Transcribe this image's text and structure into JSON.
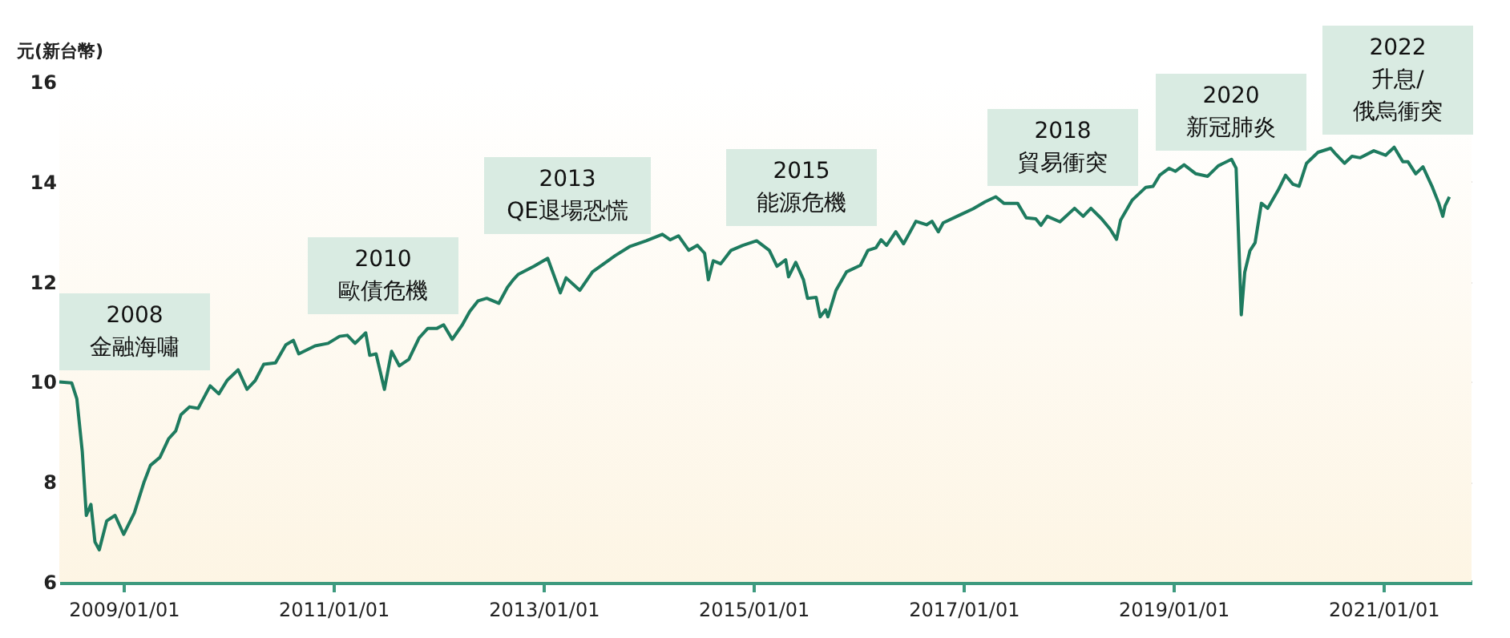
{
  "chart_data": {
    "type": "line",
    "ylabel": "元(新台幣)",
    "x": [
      "2008-05-22",
      "2008-07-04",
      "2008-07-22",
      "2008-08-10",
      "2008-08-24",
      "2008-09-09",
      "2008-09-23",
      "2008-10-08",
      "2008-11-03",
      "2008-12-02",
      "2009-01-01",
      "2009-02-07",
      "2009-03-13",
      "2009-04-04",
      "2009-05-07",
      "2009-06-06",
      "2009-07-01",
      "2009-07-19",
      "2009-08-18",
      "2009-09-17",
      "2009-10-29",
      "2009-11-28",
      "2009-12-27",
      "2010-02-03",
      "2010-03-06",
      "2010-04-04",
      "2010-05-03",
      "2010-06-13",
      "2010-07-19",
      "2010-08-14",
      "2010-09-02",
      "2010-10-29",
      "2010-12-13",
      "2011-01-22",
      "2011-02-18",
      "2011-03-17",
      "2011-04-23",
      "2011-05-07",
      "2011-05-29",
      "2011-06-27",
      "2011-07-22",
      "2011-08-18",
      "2011-09-20",
      "2011-10-26",
      "2011-11-25",
      "2011-12-27",
      "2012-01-19",
      "2012-02-18",
      "2012-03-24",
      "2012-04-19",
      "2012-05-18",
      "2012-06-17",
      "2012-07-29",
      "2012-08-28",
      "2012-09-17",
      "2012-10-05",
      "2012-11-28",
      "2013-01-15",
      "2013-02-28",
      "2013-03-20",
      "2013-05-07",
      "2013-06-20",
      "2013-09-06",
      "2013-10-29",
      "2013-12-24",
      "2014-02-18",
      "2014-03-17",
      "2014-04-15",
      "2014-05-21",
      "2014-06-20",
      "2014-07-15",
      "2014-07-28",
      "2014-08-14",
      "2014-09-09",
      "2014-10-15",
      "2014-11-25",
      "2015-01-12",
      "2015-02-25",
      "2015-03-24",
      "2015-04-23",
      "2015-05-03",
      "2015-05-28",
      "2015-06-24",
      "2015-07-08",
      "2015-08-07",
      "2015-08-21",
      "2015-09-09",
      "2015-09-17",
      "2015-10-15",
      "2015-11-21",
      "2016-01-08",
      "2016-02-03",
      "2016-03-02",
      "2016-03-20",
      "2016-04-08",
      "2016-05-10",
      "2016-06-06",
      "2016-07-19",
      "2016-08-25",
      "2016-09-13",
      "2016-10-05",
      "2016-10-22",
      "2016-12-24",
      "2017-02-03",
      "2017-03-17",
      "2017-04-23",
      "2017-05-21",
      "2017-07-08",
      "2017-08-07",
      "2017-09-09",
      "2017-09-27",
      "2017-10-19",
      "2017-12-02",
      "2018-01-22",
      "2018-02-21",
      "2018-03-20",
      "2018-04-26",
      "2018-05-25",
      "2018-06-17",
      "2018-07-01",
      "2018-08-10",
      "2018-09-27",
      "2018-10-22",
      "2018-11-14",
      "2018-12-17",
      "2019-01-08",
      "2019-02-07",
      "2019-03-20",
      "2019-04-30",
      "2019-06-06",
      "2019-07-22",
      "2019-08-07",
      "2019-08-18",
      "2019-08-25",
      "2019-09-06",
      "2019-09-24",
      "2019-10-12",
      "2019-11-03",
      "2019-11-25",
      "2020-01-01",
      "2020-01-26",
      "2020-02-21",
      "2020-03-13",
      "2020-03-27",
      "2020-04-08",
      "2020-05-18",
      "2020-07-01",
      "2020-07-19",
      "2020-08-18",
      "2020-09-13",
      "2020-10-12",
      "2020-11-28",
      "2021-01-08",
      "2021-02-07",
      "2021-03-09",
      "2021-03-27",
      "2021-04-23",
      "2021-05-18",
      "2021-06-20",
      "2021-07-12",
      "2021-07-26",
      "2021-08-03",
      "2021-08-18"
    ],
    "series": [
      {
        "color": "#1e7b5f",
        "values": [
          10.0,
          9.98,
          9.66,
          8.6,
          7.33,
          7.55,
          6.8,
          6.64,
          7.22,
          7.33,
          6.95,
          7.38,
          8.0,
          8.33,
          8.49,
          8.86,
          9.02,
          9.34,
          9.5,
          9.47,
          9.92,
          9.76,
          10.03,
          10.24,
          9.85,
          10.03,
          10.35,
          10.38,
          10.74,
          10.83,
          10.56,
          10.72,
          10.77,
          10.91,
          10.93,
          10.77,
          10.98,
          10.53,
          10.56,
          9.85,
          10.61,
          10.32,
          10.45,
          10.88,
          11.07,
          11.07,
          11.14,
          10.85,
          11.14,
          11.41,
          11.62,
          11.67,
          11.57,
          11.89,
          12.04,
          12.15,
          12.31,
          12.47,
          11.78,
          12.08,
          11.83,
          12.2,
          12.52,
          12.71,
          12.82,
          12.95,
          12.84,
          12.92,
          12.63,
          12.73,
          12.57,
          12.04,
          12.42,
          12.36,
          12.63,
          12.73,
          12.82,
          12.63,
          12.31,
          12.44,
          12.1,
          12.39,
          12.04,
          11.67,
          11.69,
          11.3,
          11.44,
          11.3,
          11.83,
          12.2,
          12.33,
          12.63,
          12.68,
          12.84,
          12.73,
          13.0,
          12.76,
          13.21,
          13.14,
          13.21,
          13.0,
          13.18,
          13.35,
          13.46,
          13.6,
          13.7,
          13.57,
          13.57,
          13.28,
          13.26,
          13.13,
          13.31,
          13.2,
          13.47,
          13.31,
          13.47,
          13.26,
          13.06,
          12.85,
          13.23,
          13.63,
          13.89,
          13.91,
          14.13,
          14.27,
          14.21,
          14.34,
          14.16,
          14.11,
          14.32,
          14.45,
          14.27,
          12.51,
          11.34,
          12.19,
          12.62,
          12.78,
          13.57,
          13.47,
          13.84,
          14.13,
          13.95,
          13.91,
          14.16,
          14.37,
          14.59,
          14.67,
          14.55,
          14.37,
          14.51,
          14.48,
          14.62,
          14.53,
          14.69,
          14.4,
          14.4,
          14.16,
          14.3,
          13.89,
          13.57,
          13.31,
          13.52,
          13.7
        ]
      }
    ],
    "xlim": [
      "2008-05-22",
      "2021-11-03"
    ],
    "xticks": [
      {
        "value": "2009-01-01",
        "label": "2009/01/01"
      },
      {
        "value": "2011-01-01",
        "label": "2011/01/01"
      },
      {
        "value": "2013-01-01",
        "label": "2013/01/01"
      },
      {
        "value": "2015-01-01",
        "label": "2015/01/01"
      },
      {
        "value": "2017-01-01",
        "label": "2017/01/01"
      },
      {
        "value": "2019-01-01",
        "label": "2019/01/01"
      },
      {
        "value": "2021-01-01",
        "label": "2021/01/01"
      }
    ],
    "ylim": [
      6,
      16
    ],
    "yticks": [
      6,
      8,
      10,
      12,
      14,
      16
    ],
    "grid": "y",
    "annotations": [
      "2008\n金融海嘯",
      "2010\n歐債危機",
      "2013\nQE退場恐慌",
      "2015\n能源危機",
      "2018\n貿易衝突",
      "2020\n新冠肺炎",
      "2022\n升息/\n俄烏衝突"
    ]
  }
}
